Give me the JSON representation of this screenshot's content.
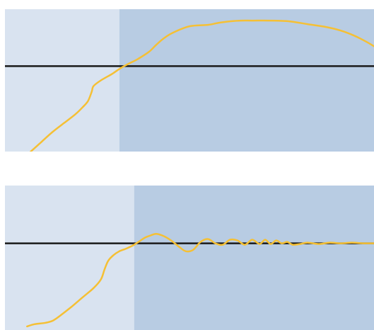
{
  "colors": {
    "background": "#ffffff",
    "region_light": "#d9e3f0",
    "region_dark": "#b8cce3",
    "reference_line": "#1a1a1a",
    "signal": "#f5c035"
  },
  "chart_data": [
    {
      "type": "line",
      "title": "",
      "xlabel": "",
      "ylabel": "",
      "xlim": [
        0,
        1
      ],
      "ylim": [
        -1.2,
        0.8
      ],
      "grid": false,
      "legend": "none",
      "reference_line": {
        "y": 0,
        "label": ""
      },
      "shaded_regions": [
        {
          "from": 0,
          "to": 0.31,
          "shade": "light"
        },
        {
          "from": 0.31,
          "to": 1,
          "shade": "dark"
        }
      ],
      "series": [
        {
          "x": [
            0.07,
            0.1,
            0.13,
            0.16,
            0.19,
            0.21,
            0.225,
            0.235,
            0.24,
            0.26,
            0.29,
            0.31,
            0.33,
            0.36,
            0.39,
            0.41,
            0.43,
            0.455,
            0.5,
            0.55,
            0.58,
            0.61,
            0.64,
            0.67,
            0.72,
            0.77,
            0.82,
            0.87,
            0.91,
            0.95,
            0.98,
            1.0
          ],
          "y": [
            -1.2,
            -1.06,
            -0.92,
            -0.8,
            -0.68,
            -0.58,
            -0.49,
            -0.36,
            -0.28,
            -0.2,
            -0.11,
            -0.04,
            0.02,
            0.1,
            0.2,
            0.3,
            0.39,
            0.47,
            0.56,
            0.58,
            0.61,
            0.63,
            0.64,
            0.64,
            0.64,
            0.63,
            0.59,
            0.55,
            0.5,
            0.42,
            0.34,
            0.28
          ]
        }
      ]
    },
    {
      "type": "line",
      "title": "",
      "xlabel": "",
      "ylabel": "",
      "xlim": [
        0,
        1
      ],
      "ylim": [
        -1.2,
        0.8
      ],
      "grid": false,
      "legend": "none",
      "reference_line": {
        "y": 0,
        "label": ""
      },
      "shaded_regions": [
        {
          "from": 0,
          "to": 0.35,
          "shade": "light"
        },
        {
          "from": 0.35,
          "to": 1,
          "shade": "dark"
        }
      ],
      "series": [
        {
          "x": [
            0.06,
            0.08,
            0.11,
            0.13,
            0.15,
            0.18,
            0.21,
            0.24,
            0.26,
            0.27,
            0.28,
            0.295,
            0.31,
            0.33,
            0.35,
            0.365,
            0.38,
            0.395,
            0.41,
            0.43,
            0.45,
            0.47,
            0.49,
            0.51,
            0.53,
            0.55,
            0.57,
            0.59,
            0.61,
            0.63,
            0.65,
            0.67,
            0.69,
            0.705,
            0.72,
            0.735,
            0.75,
            0.765,
            0.78,
            0.8,
            0.82,
            0.85,
            0.88,
            0.91,
            0.94,
            0.97,
            1.0
          ],
          "y": [
            -1.15,
            -1.12,
            -1.1,
            -1.07,
            -1.0,
            -0.88,
            -0.75,
            -0.62,
            -0.5,
            -0.36,
            -0.24,
            -0.16,
            -0.11,
            -0.07,
            -0.02,
            0.03,
            0.08,
            0.11,
            0.13,
            0.1,
            0.04,
            -0.04,
            -0.11,
            -0.09,
            0.02,
            0.06,
            0.0,
            -0.02,
            0.05,
            0.04,
            -0.02,
            0.05,
            -0.01,
            0.05,
            -0.01,
            0.04,
            0.0,
            0.02,
            -0.02,
            -0.01,
            0.01,
            -0.01,
            0.01,
            0.0,
            0.01,
            0.0,
            0.0
          ]
        }
      ]
    }
  ]
}
